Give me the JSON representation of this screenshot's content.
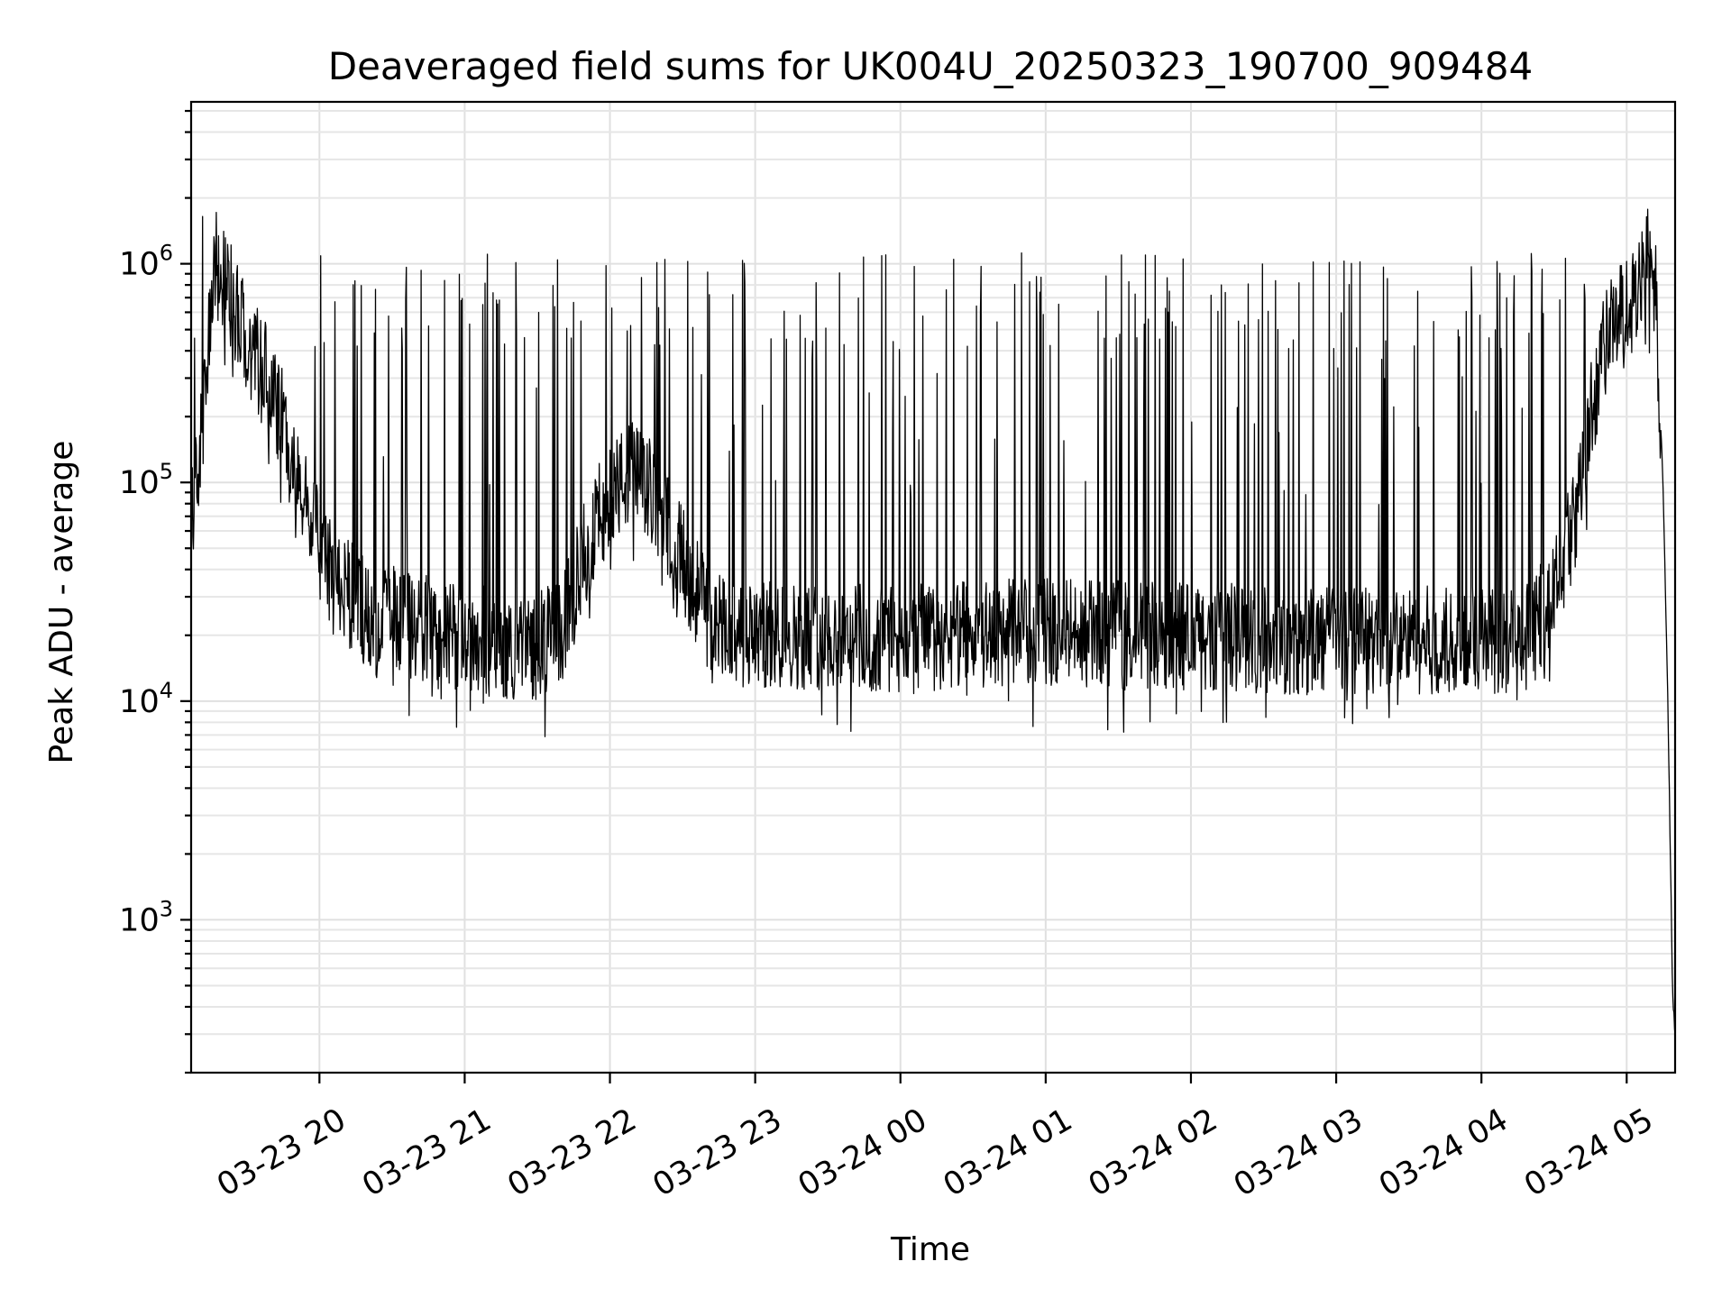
{
  "chart_data": {
    "type": "line",
    "title": "Deaveraged field sums for UK004U_20250323_190700_909484",
    "xlabel": "Time",
    "ylabel": "Peak ADU - average",
    "yscale": "log",
    "xlim": [
      "2025-03-23 19:07",
      "2025-03-24 05:20"
    ],
    "ylim": [
      200,
      5500000
    ],
    "grid": true,
    "x_tick_labels": [
      "03-23 20",
      "03-23 21",
      "03-23 22",
      "03-23 23",
      "03-24 00",
      "03-24 01",
      "03-24 02",
      "03-24 03",
      "03-24 04",
      "03-24 05"
    ],
    "y_ticks": [
      {
        "base": "10",
        "exp": "3",
        "value": 1000
      },
      {
        "base": "10",
        "exp": "4",
        "value": 10000
      },
      {
        "base": "10",
        "exp": "5",
        "value": 100000
      },
      {
        "base": "10",
        "exp": "6",
        "value": 1000000
      }
    ],
    "series": [
      {
        "color": "#000000",
        "x": [
          "2025-03-23 19:07",
          "2025-03-23 19:12",
          "2025-03-23 19:17",
          "2025-03-23 19:22",
          "2025-03-23 19:28",
          "2025-03-23 19:35",
          "2025-03-23 19:42",
          "2025-03-23 19:50",
          "2025-03-23 19:58",
          "2025-03-23 20:06",
          "2025-03-23 20:14",
          "2025-03-23 20:22",
          "2025-03-23 20:30",
          "2025-03-23 20:40",
          "2025-03-23 20:50",
          "2025-03-23 21:00",
          "2025-03-23 21:15",
          "2025-03-23 21:30",
          "2025-03-23 21:40",
          "2025-03-23 21:50",
          "2025-03-23 22:00",
          "2025-03-23 22:10",
          "2025-03-23 22:20",
          "2025-03-23 22:30",
          "2025-03-23 22:40",
          "2025-03-23 22:50",
          "2025-03-23 23:00",
          "2025-03-23 23:30",
          "2025-03-24 00:00",
          "2025-03-24 00:30",
          "2025-03-24 01:00",
          "2025-03-24 01:30",
          "2025-03-24 02:00",
          "2025-03-24 02:30",
          "2025-03-24 03:00",
          "2025-03-24 03:30",
          "2025-03-24 04:00",
          "2025-03-24 04:20",
          "2025-03-24 04:30",
          "2025-03-24 04:40",
          "2025-03-24 04:45",
          "2025-03-24 04:50",
          "2025-03-24 04:55",
          "2025-03-24 05:00",
          "2025-03-24 05:05",
          "2025-03-24 05:09",
          "2025-03-24 05:12",
          "2025-03-24 05:15",
          "2025-03-24 05:17",
          "2025-03-24 05:19",
          "2025-03-24 05:20"
        ],
        "y": [
          60000,
          200000,
          1000000,
          800000,
          500000,
          350000,
          250000,
          100000,
          60000,
          35000,
          30000,
          22000,
          25000,
          22000,
          20000,
          20000,
          18000,
          18000,
          20000,
          50000,
          90000,
          110000,
          80000,
          45000,
          25000,
          20000,
          20000,
          20000,
          19000,
          20000,
          21000,
          20000,
          20000,
          19000,
          19000,
          19000,
          19000,
          20000,
          30000,
          80000,
          200000,
          400000,
          550000,
          600000,
          700000,
          1100000,
          700000,
          100000,
          10000,
          450,
          300
        ]
      }
    ]
  }
}
